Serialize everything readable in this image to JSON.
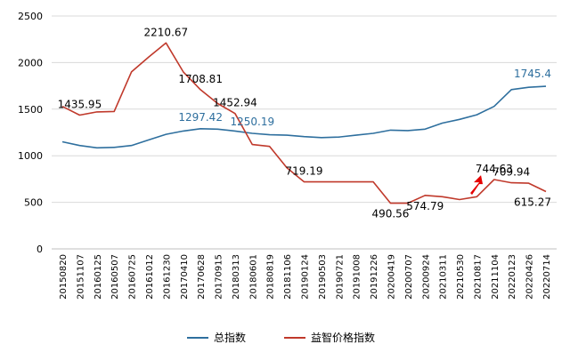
{
  "chart_data": {
    "type": "line",
    "ylim": [
      0,
      2500
    ],
    "yticks": [
      0,
      500,
      1000,
      1500,
      2000,
      2500
    ],
    "grid": "horizontal",
    "legend_position": "bottom",
    "x_labels": [
      "20150820",
      "20151107",
      "20160125",
      "20160507",
      "20160725",
      "20161012",
      "20161230",
      "20170410",
      "20170628",
      "20170915",
      "20180313",
      "20180601",
      "20180819",
      "20181106",
      "20190124",
      "20190503",
      "20190721",
      "20191008",
      "20191226",
      "20200419",
      "20200707",
      "20200924",
      "20210311",
      "20210530",
      "20210817",
      "20211104",
      "20220123",
      "20220426",
      "20220714"
    ],
    "series": [
      {
        "name": "总指数",
        "color": "#2e6f9e",
        "values": [
          1150,
          1110,
          1085,
          1090,
          1110,
          1170,
          1230,
          1265,
          1290,
          1285,
          1265,
          1240,
          1225,
          1220,
          1205,
          1195,
          1200,
          1220,
          1240,
          1275,
          1270,
          1285,
          1350,
          1390,
          1440,
          1530,
          1710,
          1735,
          1745.4
        ]
      },
      {
        "name": "益智价格指数",
        "color": "#c0392b",
        "values": [
          1530,
          1435.95,
          1470,
          1475,
          1900,
          2060,
          2210.67,
          1900,
          1708.81,
          1560,
          1452.94,
          1120,
          1100,
          870,
          719.19,
          719.19,
          719.19,
          719.19,
          719.19,
          490.56,
          490.56,
          574.79,
          560,
          530,
          560,
          744.63,
          709.94,
          705,
          615.27
        ]
      }
    ],
    "annotations": [
      {
        "text": "2210.67",
        "series": 1,
        "color": "#000000"
      },
      {
        "text": "1708.81",
        "series": 1,
        "color": "#000000"
      },
      {
        "text": "1452.94",
        "series": 1,
        "color": "#000000"
      },
      {
        "text": "1435.95",
        "series": 1,
        "color": "#000000"
      },
      {
        "text": "719.19",
        "series": 1,
        "color": "#000000"
      },
      {
        "text": "490.56",
        "series": 1,
        "color": "#000000"
      },
      {
        "text": "574.79",
        "series": 1,
        "color": "#000000"
      },
      {
        "text": "744.63",
        "series": 1,
        "color": "#000000"
      },
      {
        "text": "709.94",
        "series": 1,
        "color": "#000000"
      },
      {
        "text": "615.27",
        "series": 1,
        "color": "#000000"
      },
      {
        "text": "1297.42",
        "series": 0,
        "color": "#2e6f9e"
      },
      {
        "text": "1250.19",
        "series": 0,
        "color": "#2e6f9e"
      },
      {
        "text": "1745.4",
        "series": 0,
        "color": "#2e6f9e"
      }
    ]
  }
}
